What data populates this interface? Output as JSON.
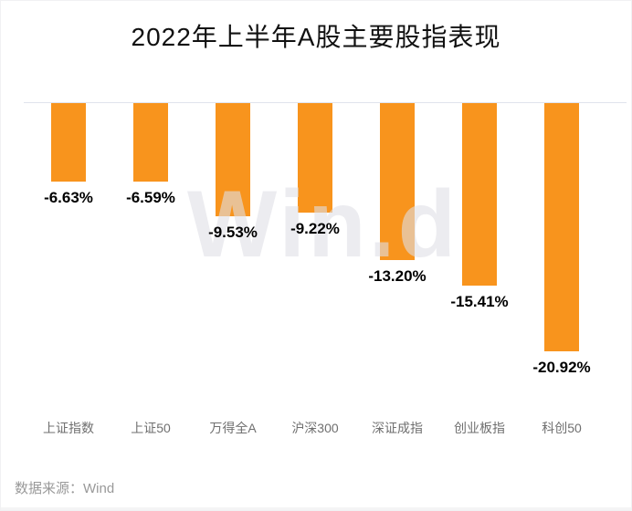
{
  "chart_data": {
    "type": "bar",
    "title": "2022年上半年A股主要股指表现",
    "categories": [
      "上证指数",
      "上证50",
      "万得全A",
      "沪深300",
      "深证成指",
      "创业板指",
      "科创50"
    ],
    "values": [
      -6.63,
      -6.59,
      -9.53,
      -9.22,
      -13.2,
      -15.41,
      -20.92
    ],
    "value_labels": [
      "-6.63%",
      "-6.59%",
      "-9.53%",
      "-9.22%",
      "-13.20%",
      "-15.41%",
      "-20.92%"
    ],
    "xlabel": "",
    "ylabel": "",
    "ylim": [
      -22,
      0
    ],
    "grid": false,
    "legend": false,
    "orientation": "vertical",
    "bar_color": "#F8941D",
    "axis_line_color": "#E0E3ED",
    "value_label_color": "#000000",
    "category_label_color": "#6f6f6f"
  },
  "watermark": {
    "text": "Win.d"
  },
  "source": {
    "text": "数据来源：Wind"
  }
}
